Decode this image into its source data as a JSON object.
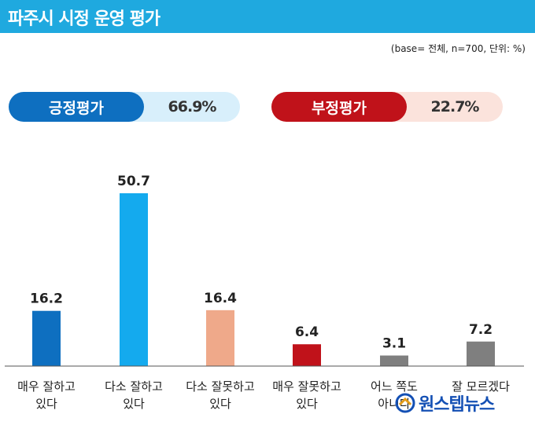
{
  "header": {
    "title": "파주시 시정 운영 평가"
  },
  "note": "(base= 전체, n=700, 단위: %)",
  "summary": {
    "positive": {
      "label": "긍정평가",
      "value": "66.9%"
    },
    "negative": {
      "label": "부정평가",
      "value": "22.7%"
    }
  },
  "colors": {
    "header": "#1fa9df",
    "very_good": "#0e6fc0",
    "good": "#14aaee",
    "bad": "#efa98a",
    "very_bad": "#c0121a",
    "neutral": "#7f7f7f"
  },
  "chart_data": {
    "type": "bar",
    "title": "파주시 시정 운영 평가",
    "categories": [
      [
        "매우 잘하고",
        "있다"
      ],
      [
        "다소 잘하고",
        "있다"
      ],
      [
        "다소 잘못하고",
        "있다"
      ],
      [
        "매우 잘못하고",
        "있다"
      ],
      [
        "어느 쪽도",
        "아니다"
      ],
      [
        "잘 모르겠다"
      ]
    ],
    "values": [
      16.2,
      50.7,
      16.4,
      6.4,
      3.1,
      7.2
    ],
    "value_labels": [
      "16.2",
      "50.7",
      "16.4",
      "6.4",
      "3.1",
      "7.2"
    ],
    "bar_colors": [
      "#0e6fc0",
      "#14aaee",
      "#efa98a",
      "#c0121a",
      "#7f7f7f",
      "#7f7f7f"
    ],
    "ylim": [
      0,
      50.7
    ],
    "grid": false,
    "legend": "none"
  },
  "watermark": {
    "text": "원스텝뉴스",
    "icon": "onestep-news-logo-icon"
  }
}
